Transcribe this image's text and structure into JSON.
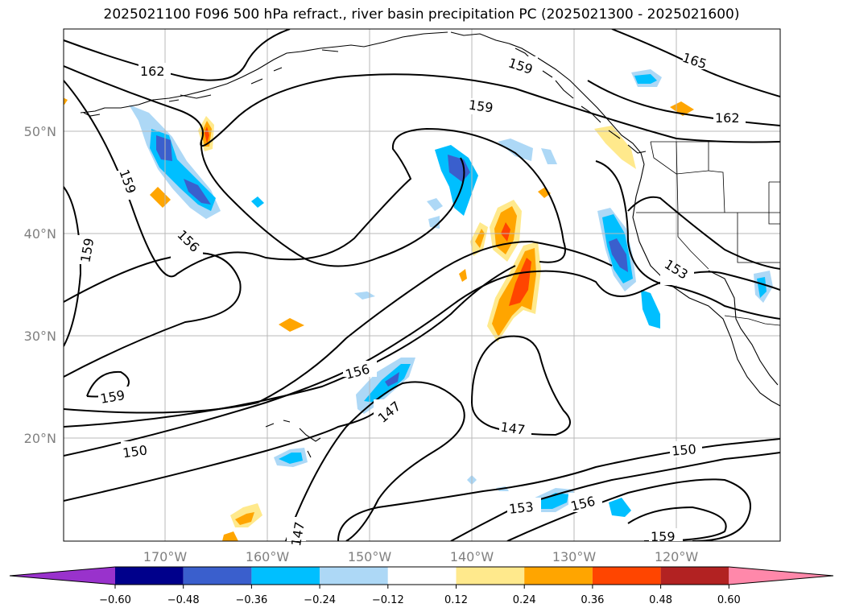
{
  "title": "2025021100 F096 500 hPa refract., river basin precipitation PC (2025021300 - 2025021600)",
  "lat_labels": [
    "50°N",
    "40°N",
    "30°N",
    "20°N"
  ],
  "lon_labels": [
    "170°W",
    "160°W",
    "150°W",
    "140°W",
    "130°W",
    "120°W"
  ],
  "contour_labels": [
    "162",
    "159",
    "165",
    "162",
    "159",
    "159",
    "156",
    "159",
    "156",
    "153",
    "147",
    "147",
    "150",
    "150",
    "153",
    "156",
    "159",
    "147",
    "159"
  ],
  "colorbar": {
    "ticks": [
      "−0.60",
      "−0.48",
      "−0.36",
      "−0.24",
      "−0.12",
      "0.12",
      "0.24",
      "0.36",
      "0.48",
      "0.60"
    ],
    "colors": [
      "#9932cc",
      "#00008b",
      "#3a5fcd",
      "#00bfff",
      "#add8f6",
      "#ffffff",
      "#ffe98c",
      "#ffa500",
      "#ff4500",
      "#b22222",
      "#ff88aa"
    ]
  }
}
